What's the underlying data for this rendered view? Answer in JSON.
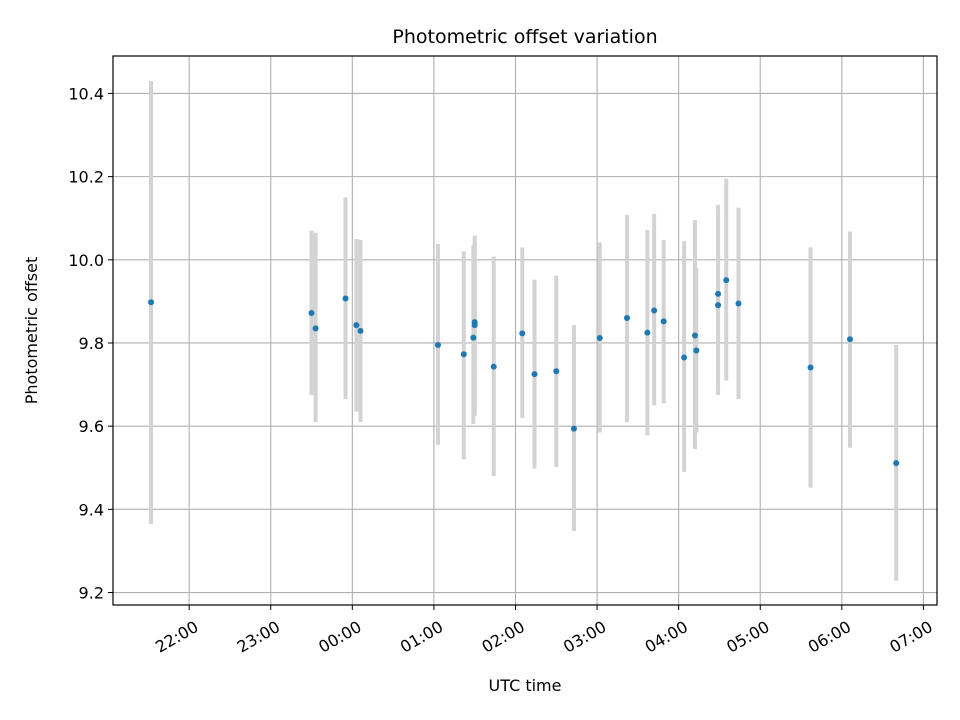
{
  "chart_data": {
    "type": "scatter",
    "title": "Photometric offset variation",
    "xlabel": "UTC time",
    "ylabel": "Photometric offset",
    "x_ticks": [
      "22:00",
      "23:00",
      "00:00",
      "01:00",
      "02:00",
      "03:00",
      "04:00",
      "05:00",
      "06:00",
      "07:00"
    ],
    "y_ticks": [
      "9.2",
      "9.4",
      "9.6",
      "9.8",
      "10.0",
      "10.2",
      "10.4"
    ],
    "xlim": [
      "21:04",
      "07:10"
    ],
    "ylim": [
      9.17,
      10.49
    ],
    "grid": true,
    "colors": {
      "point": "#1f77b4",
      "errorbar": "#d3d3d3",
      "grid": "#b0b0b0"
    },
    "points": [
      {
        "x": "21:32",
        "y": 9.898,
        "lo": 9.365,
        "hi": 10.43
      },
      {
        "x": "23:30",
        "y": 9.872,
        "lo": 9.675,
        "hi": 10.07
      },
      {
        "x": "23:33",
        "y": 9.835,
        "lo": 9.61,
        "hi": 10.065
      },
      {
        "x": "23:55",
        "y": 9.907,
        "lo": 9.665,
        "hi": 10.15
      },
      {
        "x": "00:03",
        "y": 9.843,
        "lo": 9.635,
        "hi": 10.05
      },
      {
        "x": "00:06",
        "y": 9.829,
        "lo": 9.61,
        "hi": 10.048
      },
      {
        "x": "01:03",
        "y": 9.795,
        "lo": 9.555,
        "hi": 10.038
      },
      {
        "x": "01:22",
        "y": 9.773,
        "lo": 9.52,
        "hi": 10.02
      },
      {
        "x": "01:29",
        "y": 9.813,
        "lo": 9.605,
        "hi": 10.035
      },
      {
        "x": "01:30",
        "y": 9.85,
        "lo": 9.64,
        "hi": 10.058
      },
      {
        "x": "01:30",
        "y": 9.843,
        "lo": 9.625,
        "hi": 10.04
      },
      {
        "x": "01:44",
        "y": 9.743,
        "lo": 9.48,
        "hi": 10.008
      },
      {
        "x": "02:05",
        "y": 9.823,
        "lo": 9.62,
        "hi": 10.03
      },
      {
        "x": "02:14",
        "y": 9.725,
        "lo": 9.498,
        "hi": 9.952
      },
      {
        "x": "02:30",
        "y": 9.732,
        "lo": 9.502,
        "hi": 9.962
      },
      {
        "x": "02:43",
        "y": 9.594,
        "lo": 9.348,
        "hi": 9.843
      },
      {
        "x": "03:02",
        "y": 9.812,
        "lo": 9.585,
        "hi": 10.042
      },
      {
        "x": "03:22",
        "y": 9.86,
        "lo": 9.61,
        "hi": 10.108
      },
      {
        "x": "03:37",
        "y": 9.825,
        "lo": 9.578,
        "hi": 10.072
      },
      {
        "x": "03:42",
        "y": 9.878,
        "lo": 9.65,
        "hi": 10.11
      },
      {
        "x": "03:49",
        "y": 9.852,
        "lo": 9.655,
        "hi": 10.048
      },
      {
        "x": "04:04",
        "y": 9.765,
        "lo": 9.49,
        "hi": 10.045
      },
      {
        "x": "04:12",
        "y": 9.818,
        "lo": 9.545,
        "hi": 10.095
      },
      {
        "x": "04:13",
        "y": 9.782,
        "lo": 9.585,
        "hi": 9.98
      },
      {
        "x": "04:29",
        "y": 9.918,
        "lo": 9.705,
        "hi": 10.132
      },
      {
        "x": "04:29",
        "y": 9.891,
        "lo": 9.675,
        "hi": 10.11
      },
      {
        "x": "04:35",
        "y": 9.951,
        "lo": 9.71,
        "hi": 10.195
      },
      {
        "x": "04:44",
        "y": 9.895,
        "lo": 9.665,
        "hi": 10.125
      },
      {
        "x": "05:37",
        "y": 9.741,
        "lo": 9.452,
        "hi": 10.03
      },
      {
        "x": "06:06",
        "y": 9.809,
        "lo": 9.548,
        "hi": 10.068
      },
      {
        "x": "06:40",
        "y": 9.511,
        "lo": 9.228,
        "hi": 9.795
      }
    ]
  }
}
